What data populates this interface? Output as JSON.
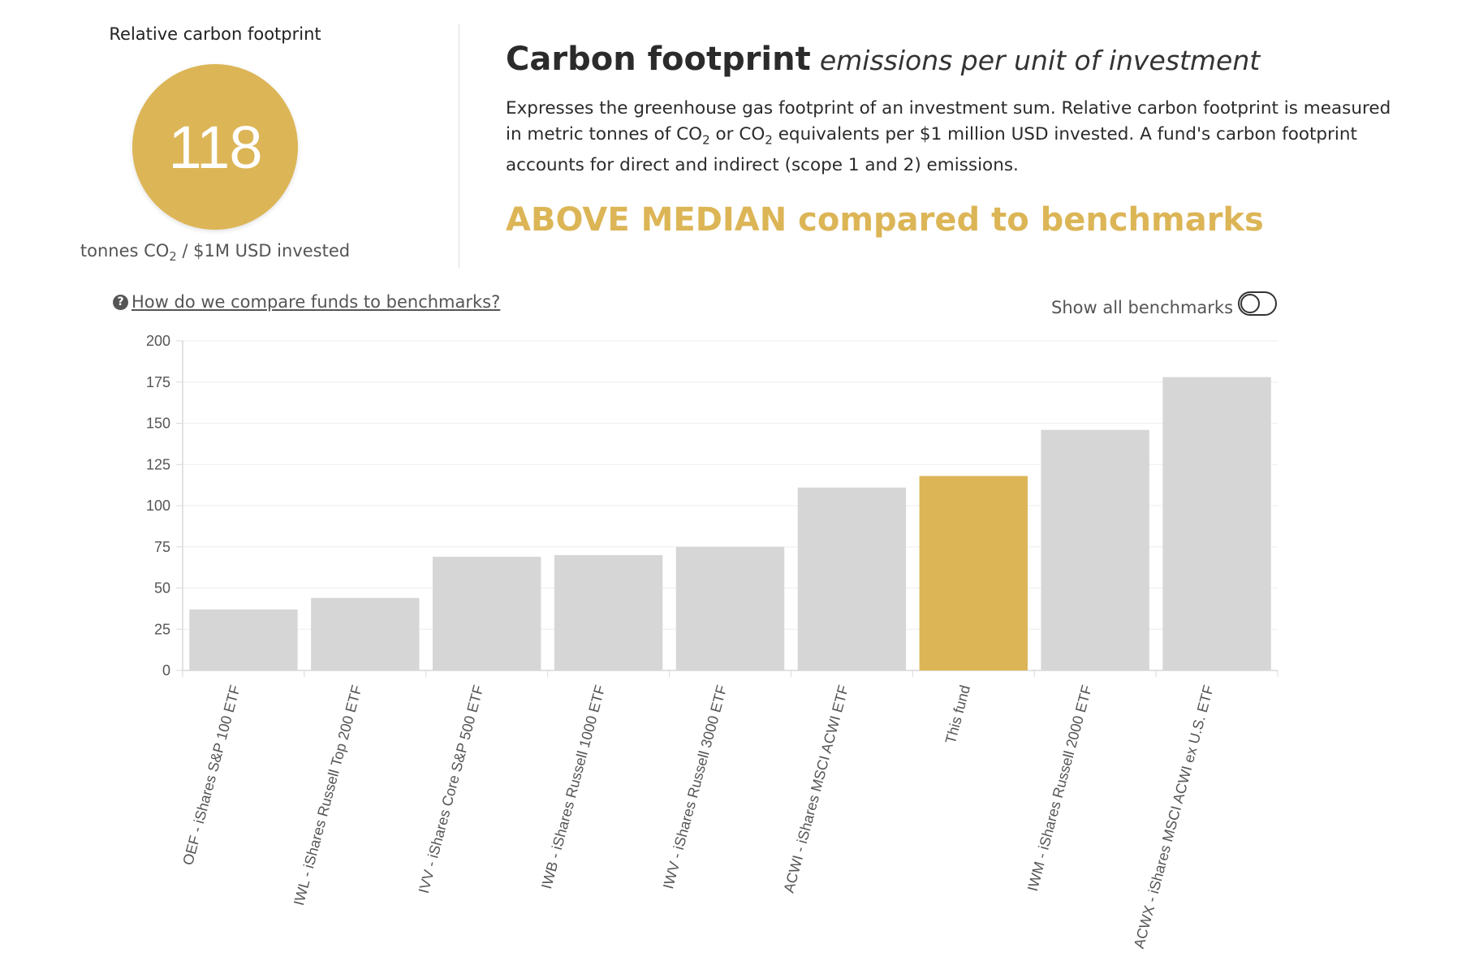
{
  "score": {
    "title": "Relative carbon footprint",
    "value": "118",
    "unit_prefix": "tonnes CO",
    "unit_sub": "2",
    "unit_suffix": " / $1M USD invested",
    "color": "#dcb556"
  },
  "heading": {
    "main": "Carbon footprint",
    "sub": "emissions per unit of investment"
  },
  "description": {
    "part1": "Expresses the greenhouse gas footprint of an investment sum. Relative carbon footprint is measured in metric tonnes of CO",
    "sub1": "2",
    "part2": " or CO",
    "sub2": "2",
    "part3": " equivalents per $1 million USD invested. A fund's carbon footprint accounts for direct and indirect (scope 1 and 2) emissions."
  },
  "verdict": "ABOVE MEDIAN compared to benchmarks",
  "help": {
    "icon": "question-circle-icon",
    "label": " How do we compare funds to benchmarks?"
  },
  "toggle": {
    "label": "Show all benchmarks",
    "on": false
  },
  "chart_data": {
    "type": "bar",
    "categories": [
      "OEF - iShares S&P 100 ETF",
      "IWL - iShares Russell Top 200 ETF",
      "IVV - iShares Core S&P 500 ETF",
      "IWB - iShares Russell 1000 ETF",
      "IWV - iShares Russell 3000 ETF",
      "ACWI - iShares MSCI ACWI ETF",
      "This fund",
      "IWM - iShares Russell 2000 ETF",
      "ACWX - iShares MSCI ACWI ex U.S. ETF"
    ],
    "values": [
      37,
      44,
      69,
      70,
      75,
      111,
      118,
      146,
      178
    ],
    "highlight_index": 6,
    "ylim": [
      0,
      200
    ],
    "yticks": [
      "0",
      "25",
      "50",
      "75",
      "100",
      "125",
      "150",
      "175",
      "200"
    ],
    "grid": true,
    "colors": {
      "bar": "#d6d6d6",
      "highlight": "#dcb556",
      "grid": "#eeeeee",
      "axis": "#d9d9d9",
      "text": "#555555"
    }
  }
}
